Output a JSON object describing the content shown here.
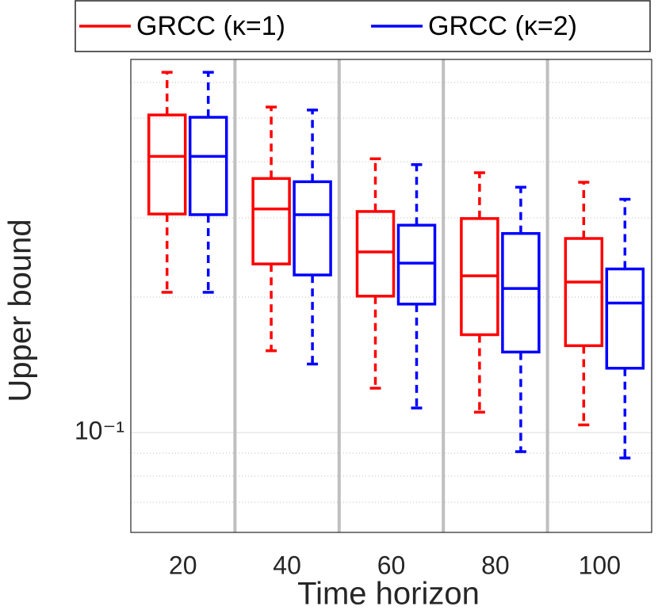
{
  "chart_data": {
    "type": "box",
    "xlabel": "Time horizon",
    "ylabel": "Upper bound",
    "categories": [
      "20",
      "40",
      "60",
      "80",
      "100"
    ],
    "log_scale_y": true,
    "ylim": [
      0.06,
      0.675
    ],
    "yticks": [
      {
        "value": 0.1,
        "label": "10⁻¹"
      }
    ],
    "minor_yticks": [
      0.07,
      0.08,
      0.09,
      0.2,
      0.3,
      0.4,
      0.5,
      0.6
    ],
    "grid": true,
    "legend_position": "top",
    "series": [
      {
        "name": "GRCC (κ=1)",
        "color": "#ff0000",
        "whisker_low": [
          0.205,
          0.152,
          0.1255,
          0.111,
          0.104
        ],
        "q1": [
          0.306,
          0.237,
          0.201,
          0.165,
          0.156
        ],
        "median": [
          0.411,
          0.314,
          0.252,
          0.223,
          0.216
        ],
        "q3": [
          0.508,
          0.367,
          0.31,
          0.299,
          0.27
        ],
        "whisker_high": [
          0.632,
          0.529,
          0.406,
          0.378,
          0.36
        ]
      },
      {
        "name": "GRCC (κ=2)",
        "color": "#0000ff",
        "whisker_low": [
          0.205,
          0.142,
          0.1134,
          0.0907,
          0.0878
        ],
        "q1": [
          0.305,
          0.224,
          0.193,
          0.151,
          0.139
        ],
        "median": [
          0.411,
          0.305,
          0.238,
          0.209,
          0.194
        ],
        "q3": [
          0.502,
          0.361,
          0.289,
          0.277,
          0.231
        ],
        "whisker_high": [
          0.632,
          0.521,
          0.394,
          0.351,
          0.33
        ]
      }
    ]
  }
}
